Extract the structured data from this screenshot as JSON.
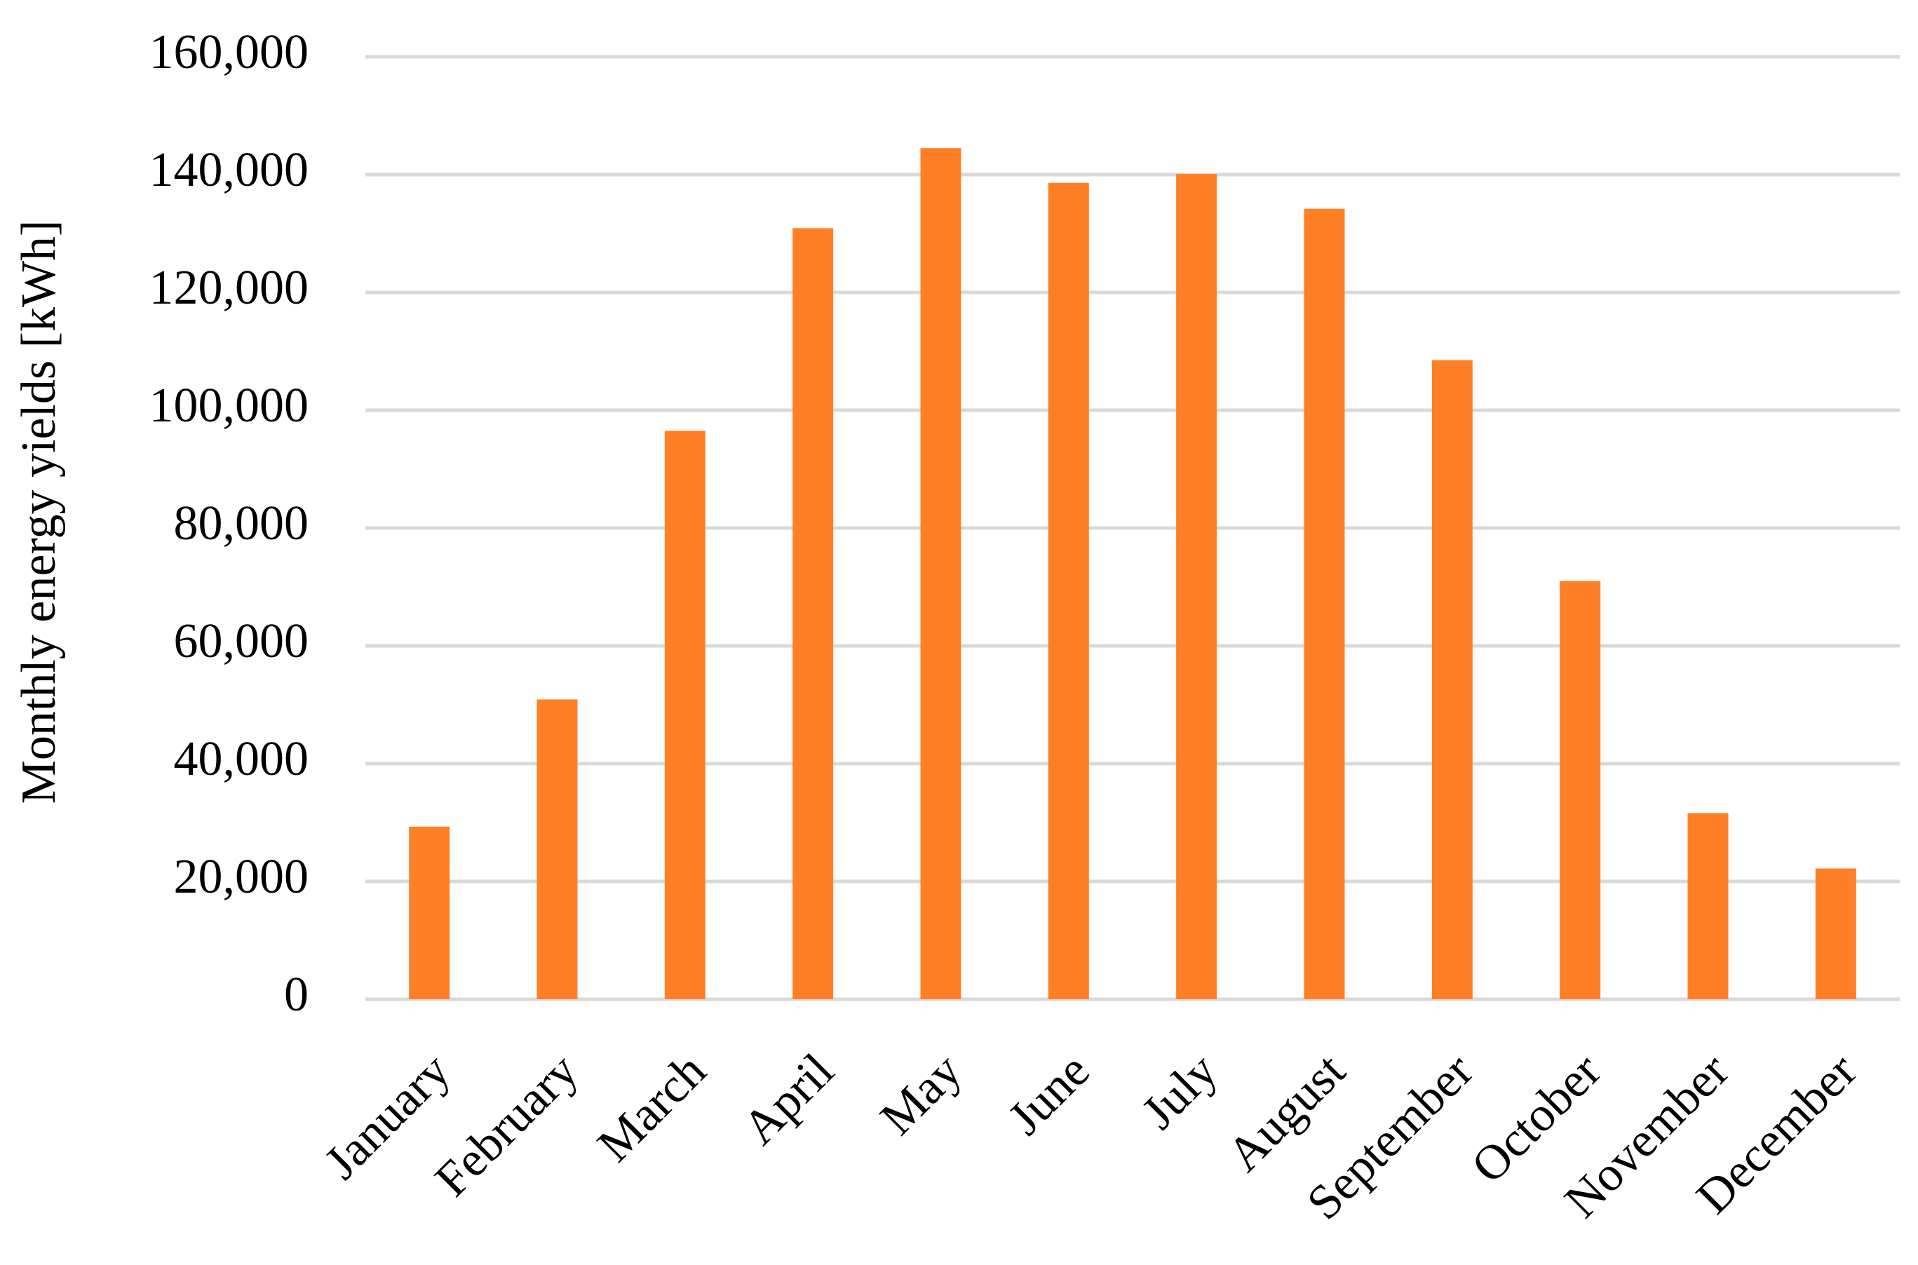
{
  "chart_data": {
    "type": "bar",
    "y_label": "Monthly energy yields [kWh]",
    "categories": [
      "January",
      "February",
      "March",
      "April",
      "May",
      "June",
      "July",
      "August",
      "September",
      "October",
      "November",
      "December"
    ],
    "values": [
      29300,
      50900,
      96500,
      130900,
      144500,
      138600,
      140100,
      134200,
      108500,
      71000,
      31600,
      22200
    ],
    "color": "#ff7f27",
    "ylim": [
      0,
      160000
    ],
    "yticks": [
      0,
      {
        "value": 20000,
        "label": "20,000"
      },
      {
        "value": 40000,
        "label": "40,000"
      },
      {
        "value": 60000,
        "label": "60,000"
      },
      {
        "value": 80000,
        "label": "80,000"
      },
      {
        "value": 100000,
        "label": "100,000"
      },
      {
        "value": 120000,
        "label": "120,000"
      },
      {
        "value": 140000,
        "label": "140,000"
      },
      {
        "value": 160000,
        "label": "160,000"
      }
    ],
    "grid": true
  }
}
